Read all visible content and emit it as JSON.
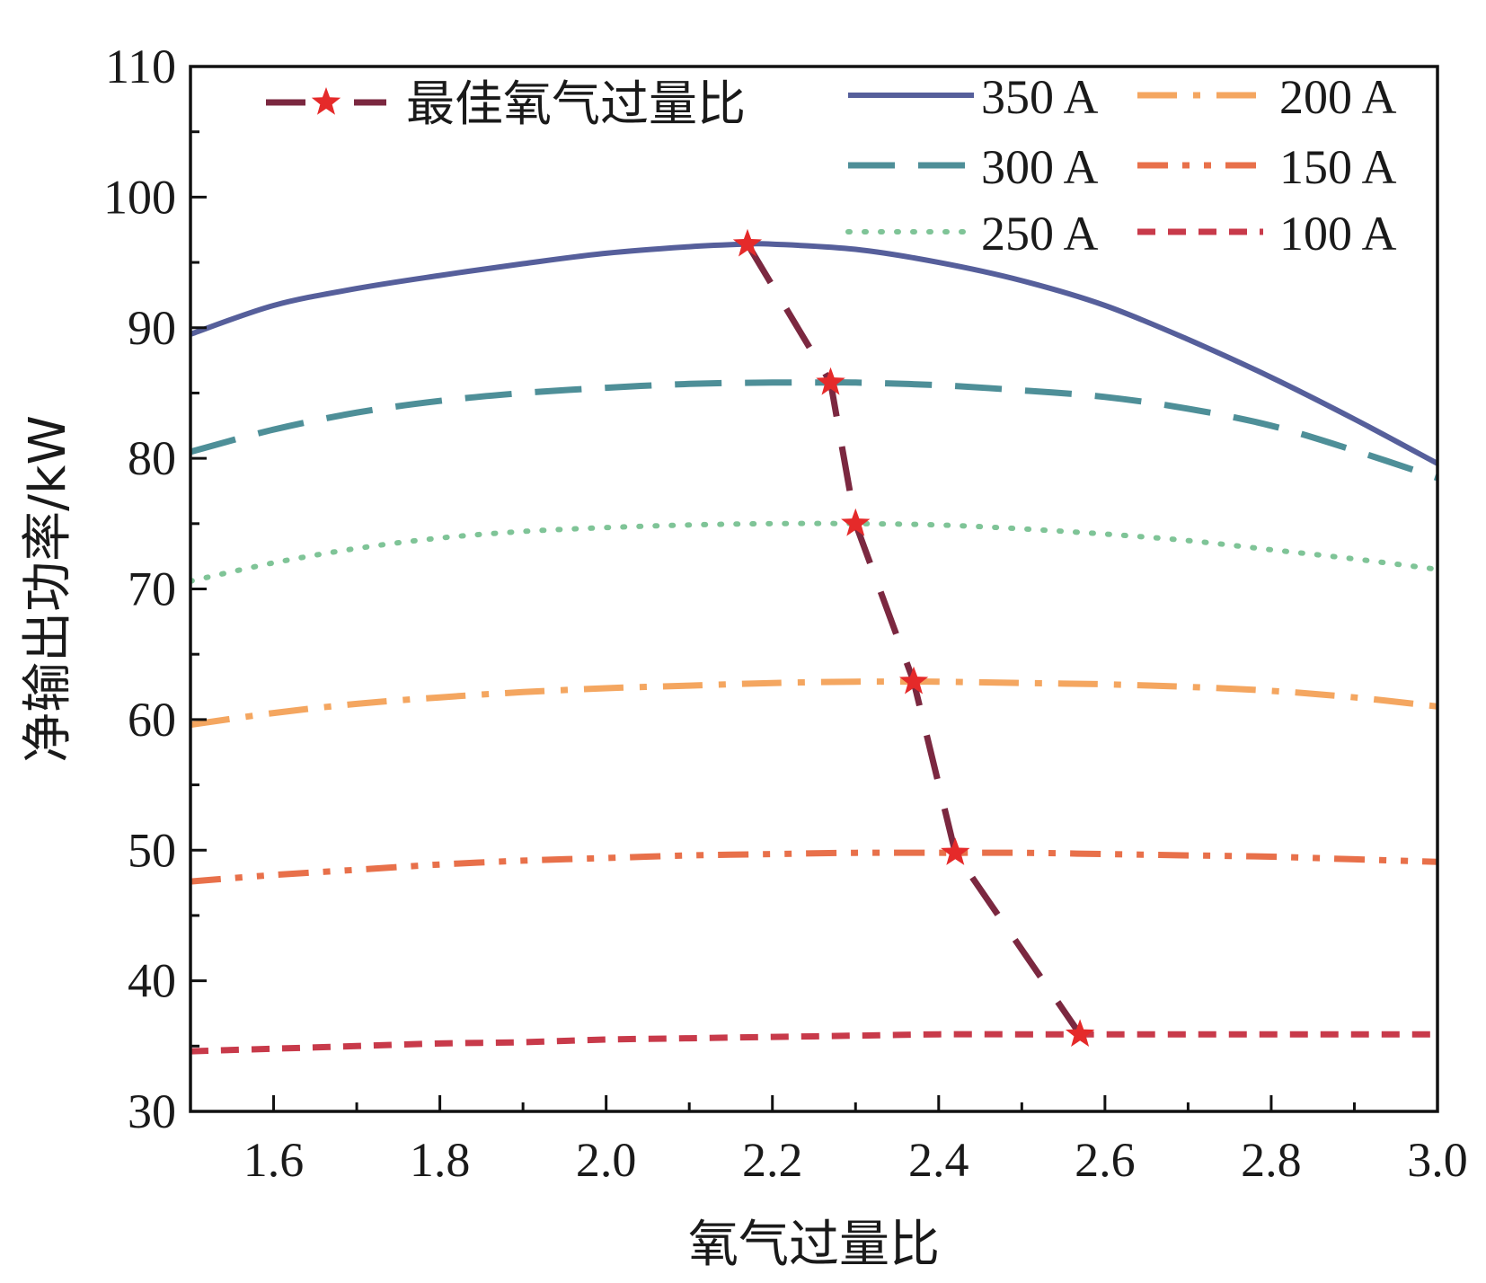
{
  "chart_data": {
    "type": "line",
    "xlabel": "氧气过量比",
    "ylabel": "净输出功率/kW",
    "xlim": [
      1.5,
      3.0
    ],
    "ylim": [
      30,
      110
    ],
    "xticks": [
      1.6,
      1.8,
      2.0,
      2.2,
      2.4,
      2.6,
      2.8,
      3.0
    ],
    "xtick_labels": [
      "1.6",
      "1.8",
      "2.0",
      "2.2",
      "2.4",
      "2.6",
      "2.8",
      "3.0"
    ],
    "yticks": [
      30,
      40,
      50,
      60,
      70,
      80,
      90,
      100,
      110
    ],
    "ytick_labels": [
      "30",
      "40",
      "50",
      "60",
      "70",
      "80",
      "90",
      "100",
      "110"
    ],
    "legend_position": "top",
    "series": [
      {
        "name": "350 A",
        "color": "#565f9b",
        "style": "solid",
        "x": [
          1.5,
          1.6,
          1.7,
          1.8,
          1.9,
          2.0,
          2.1,
          2.17,
          2.2,
          2.3,
          2.4,
          2.5,
          2.6,
          2.7,
          2.8,
          2.9,
          3.0
        ],
        "y": [
          89.5,
          91.7,
          93.0,
          94.0,
          94.9,
          95.7,
          96.2,
          96.4,
          96.4,
          96.0,
          95.0,
          93.6,
          91.7,
          89.1,
          86.2,
          83.0,
          79.6
        ]
      },
      {
        "name": "300 A",
        "color": "#4e8f98",
        "style": "dashed",
        "x": [
          1.5,
          1.6,
          1.7,
          1.8,
          1.9,
          2.0,
          2.1,
          2.2,
          2.27,
          2.3,
          2.4,
          2.5,
          2.6,
          2.7,
          2.8,
          2.9,
          3.0
        ],
        "y": [
          80.5,
          82.2,
          83.5,
          84.4,
          85.0,
          85.4,
          85.7,
          85.8,
          85.8,
          85.8,
          85.6,
          85.2,
          84.7,
          83.8,
          82.5,
          80.6,
          78.5
        ]
      },
      {
        "name": "250 A",
        "color": "#7fc497",
        "style": "dotted",
        "x": [
          1.5,
          1.6,
          1.7,
          1.8,
          1.9,
          2.0,
          2.1,
          2.2,
          2.3,
          2.4,
          2.5,
          2.6,
          2.7,
          2.8,
          2.9,
          3.0
        ],
        "y": [
          70.6,
          72.0,
          73.1,
          73.9,
          74.4,
          74.7,
          74.9,
          75.0,
          75.0,
          74.9,
          74.6,
          74.2,
          73.7,
          73.0,
          72.3,
          71.5
        ]
      },
      {
        "name": "200 A",
        "color": "#f4a660",
        "style": "dashdot",
        "x": [
          1.5,
          1.6,
          1.7,
          1.8,
          1.9,
          2.0,
          2.1,
          2.2,
          2.3,
          2.37,
          2.4,
          2.5,
          2.6,
          2.7,
          2.8,
          2.9,
          3.0
        ],
        "y": [
          59.6,
          60.5,
          61.2,
          61.7,
          62.1,
          62.4,
          62.6,
          62.8,
          62.9,
          62.9,
          62.9,
          62.8,
          62.7,
          62.5,
          62.2,
          61.7,
          61.0
        ]
      },
      {
        "name": "150 A",
        "color": "#e8704a",
        "style": "dashdotdot",
        "x": [
          1.5,
          1.6,
          1.7,
          1.8,
          1.9,
          2.0,
          2.1,
          2.2,
          2.3,
          2.42,
          2.5,
          2.6,
          2.7,
          2.8,
          2.9,
          3.0
        ],
        "y": [
          47.6,
          48.1,
          48.5,
          48.9,
          49.2,
          49.4,
          49.6,
          49.7,
          49.8,
          49.8,
          49.8,
          49.7,
          49.6,
          49.5,
          49.3,
          49.1
        ]
      },
      {
        "name": "100 A",
        "color": "#c83a4a",
        "style": "shortdash",
        "x": [
          1.5,
          1.6,
          1.7,
          1.8,
          1.9,
          2.0,
          2.1,
          2.2,
          2.3,
          2.4,
          2.5,
          2.57,
          2.6,
          2.7,
          2.8,
          2.9,
          3.0
        ],
        "y": [
          34.6,
          34.8,
          35.0,
          35.2,
          35.3,
          35.5,
          35.6,
          35.7,
          35.8,
          35.9,
          35.9,
          35.9,
          35.9,
          35.9,
          35.9,
          35.9,
          35.9
        ]
      },
      {
        "name": "最佳氧气过量比",
        "color": "#7b2840",
        "marker_color": "#e52a2a",
        "style": "longdash-star",
        "x": [
          2.17,
          2.27,
          2.3,
          2.37,
          2.42,
          2.57
        ],
        "y": [
          96.4,
          85.8,
          75.0,
          62.9,
          49.8,
          35.9
        ]
      }
    ]
  }
}
